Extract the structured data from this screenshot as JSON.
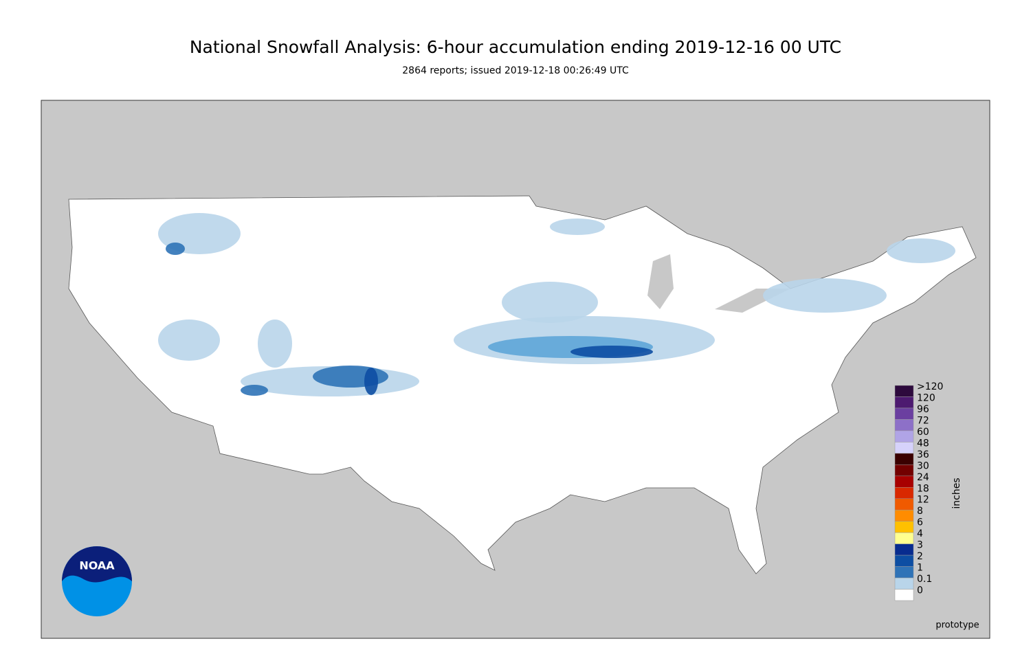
{
  "header": {
    "title": "National Snowfall Analysis: 6-hour accumulation ending 2019-12-16 00 UTC",
    "subtitle": "2864 reports; issued 2019-12-18 00:26:49 UTC"
  },
  "legend": {
    "unit": "inches",
    "bins": [
      {
        "label": ">120",
        "color": "#2d0a3d"
      },
      {
        "label": "120",
        "color": "#4d1a70"
      },
      {
        "label": "96",
        "color": "#6b3fa0"
      },
      {
        "label": "72",
        "color": "#8d70c8"
      },
      {
        "label": "60",
        "color": "#b0a4e6"
      },
      {
        "label": "48",
        "color": "#d6d2fb"
      },
      {
        "label": "36",
        "color": "#3a0000"
      },
      {
        "label": "30",
        "color": "#730000"
      },
      {
        "label": "24",
        "color": "#a80000"
      },
      {
        "label": "18",
        "color": "#d92800"
      },
      {
        "label": "12",
        "color": "#f05a00"
      },
      {
        "label": "8",
        "color": "#ff8c00"
      },
      {
        "label": "6",
        "color": "#ffc000"
      },
      {
        "label": "4",
        "color": "#ffff90"
      },
      {
        "label": "3",
        "color": "#082c8f"
      },
      {
        "label": "2",
        "color": "#0d4ea3"
      },
      {
        "label": "1",
        "color": "#2f73b7"
      },
      {
        "label": "0.1",
        "color": "#b9d5ea"
      },
      {
        "label": "0",
        "color": "#ffffff"
      }
    ]
  },
  "logo": {
    "text": "NOAA"
  },
  "footer": {
    "note": "prototype"
  }
}
